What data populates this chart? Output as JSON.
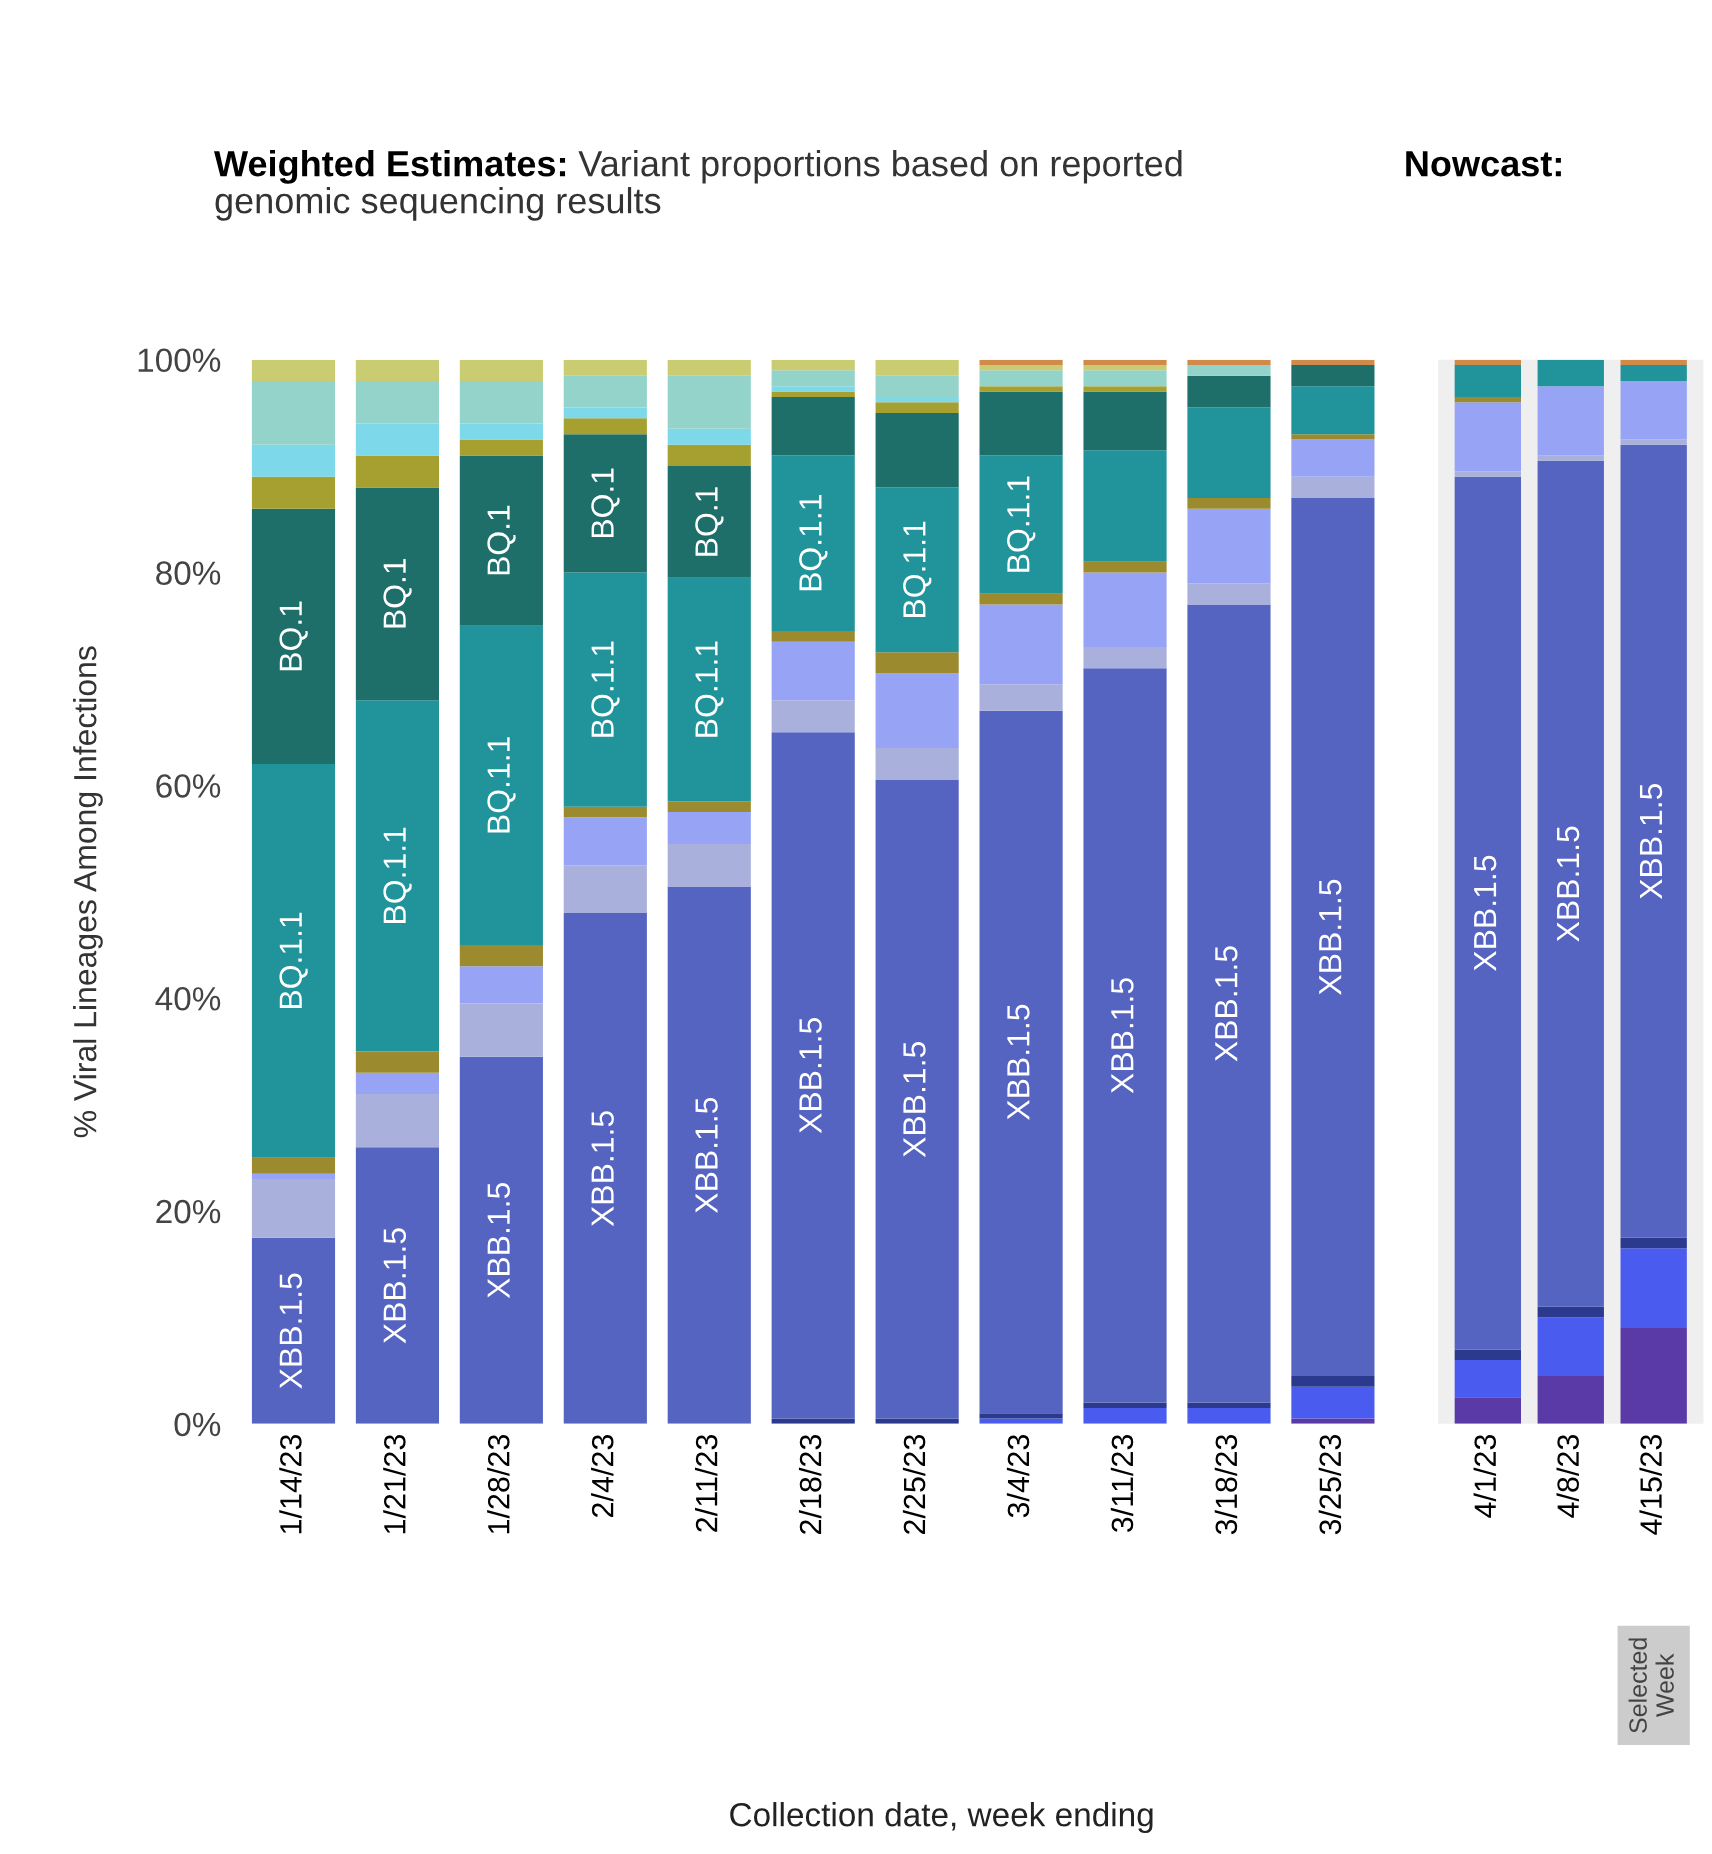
{
  "chart_data": [
    {
      "type": "bar",
      "stacked": true,
      "title": "Weighted Estimates:",
      "subtitle": "Variant proportions based on reported genomic sequencing results",
      "ylabel": "% Viral Lineages Among Infections",
      "xlabel": "Collection date, week ending",
      "categories": [
        "1/14/23",
        "1/21/23",
        "1/28/23",
        "2/4/23",
        "2/11/23",
        "2/18/23",
        "2/25/23",
        "3/4/23",
        "3/11/23",
        "3/18/23",
        "3/25/23"
      ],
      "ylim": [
        0,
        100
      ],
      "yticks": [
        {
          "value": 0,
          "label": "0%"
        },
        {
          "value": 20,
          "label": "20%"
        },
        {
          "value": 40,
          "label": "40%"
        },
        {
          "value": 60,
          "label": "60%"
        },
        {
          "value": 80,
          "label": "80%"
        },
        {
          "value": 100,
          "label": "100%"
        }
      ],
      "grid": false,
      "legend": false,
      "series": [
        {
          "color": "#5a3aa6",
          "values": [
            0,
            0,
            0,
            0,
            0,
            0,
            0,
            0,
            0,
            0,
            0.5
          ]
        },
        {
          "color": "#4a5cf0",
          "values": [
            0,
            0,
            0,
            0,
            0,
            0,
            0,
            0.5,
            1.5,
            1.5,
            3
          ]
        },
        {
          "color": "#2b3a8f",
          "values": [
            0,
            0,
            0,
            0,
            0,
            0.5,
            0.5,
            0.5,
            0.5,
            0.5,
            1
          ]
        },
        {
          "color": "#5563c1",
          "values": [
            17.5,
            26,
            34.5,
            48,
            50.5,
            64.5,
            60,
            66,
            69,
            75,
            82.5
          ],
          "value_labels": [
            "XBB.1.5",
            "XBB.1.5",
            "XBB.1.5",
            "XBB.1.5",
            "XBB.1.5",
            "XBB.1.5",
            "XBB.1.5",
            "XBB.1.5",
            "XBB.1.5",
            "XBB.1.5",
            "XBB.1.5"
          ]
        },
        {
          "color": "#a9b0dc",
          "values": [
            5.5,
            5,
            5,
            4.5,
            4,
            3,
            3,
            2.5,
            2,
            2,
            2
          ]
        },
        {
          "color": "#97a4f5",
          "values": [
            0.5,
            2,
            3.5,
            4.5,
            3,
            5.5,
            7,
            7.5,
            7,
            7,
            3.5
          ]
        },
        {
          "color": "#9c8a2e",
          "values": [
            1.5,
            2,
            2,
            1,
            1,
            1,
            2,
            1,
            1,
            1,
            0.5
          ]
        },
        {
          "color": "#21939a",
          "values": [
            37,
            33,
            30,
            22,
            21,
            16.5,
            15.5,
            13,
            10.5,
            8.5,
            4.5
          ],
          "value_labels": [
            "BQ.1.1",
            "BQ.1.1",
            "BQ.1.1",
            "BQ.1.1",
            "BQ.1.1",
            "BQ.1.1",
            "BQ.1.1",
            "BQ.1.1",
            null,
            null,
            null
          ]
        },
        {
          "color": "#1e6e6a",
          "values": [
            24,
            20,
            16,
            13,
            10.5,
            5.5,
            7,
            6,
            5.5,
            3,
            2
          ],
          "value_labels": [
            "BQ.1",
            "BQ.1",
            "BQ.1",
            "BQ.1",
            "BQ.1",
            null,
            null,
            null,
            null,
            null,
            null
          ]
        },
        {
          "color": "#a6a030",
          "values": [
            3,
            3,
            1.5,
            1.5,
            2,
            0.5,
            1,
            0.5,
            0.5,
            0,
            0
          ]
        },
        {
          "color": "#7dd8ea",
          "values": [
            3,
            3,
            1.5,
            1,
            1.5,
            0.5,
            0.5,
            0,
            0,
            0,
            0
          ]
        },
        {
          "color": "#94d3c9",
          "values": [
            6,
            4,
            4,
            3,
            5,
            1.5,
            2,
            1.5,
            1.5,
            1,
            0
          ]
        },
        {
          "color": "#c9cc70",
          "values": [
            2,
            2,
            2,
            1.5,
            1.5,
            1,
            1.5,
            0.5,
            0.5,
            0,
            0
          ]
        },
        {
          "color": "#d08a4a",
          "values": [
            0,
            0,
            0,
            0,
            0,
            0,
            0,
            0.5,
            0.5,
            0.5,
            0.5
          ]
        }
      ]
    },
    {
      "type": "bar",
      "stacked": true,
      "title": "Nowcast:",
      "categories": [
        "4/1/23",
        "4/8/23",
        "4/15/23"
      ],
      "ylim": [
        0,
        100
      ],
      "tick_labels": "x",
      "grid": false,
      "legend": false,
      "annotations": [
        "Selected Week"
      ],
      "series": [
        {
          "color": "#5a3aa6",
          "values": [
            2.5,
            4.5,
            9
          ]
        },
        {
          "color": "#4a5cf0",
          "values": [
            3.5,
            5.5,
            7.5
          ]
        },
        {
          "color": "#2b3a8f",
          "values": [
            1,
            1,
            1
          ]
        },
        {
          "color": "#5563c1",
          "values": [
            82,
            79.5,
            74.5
          ],
          "value_labels": [
            "XBB.1.5",
            "XBB.1.5",
            "XBB.1.5"
          ]
        },
        {
          "color": "#a9b0dc",
          "values": [
            0.5,
            0.5,
            0.5
          ]
        },
        {
          "color": "#97a4f5",
          "values": [
            6.5,
            6.5,
            5.5
          ]
        },
        {
          "color": "#9c8a2e",
          "values": [
            0.5,
            0,
            0
          ]
        },
        {
          "color": "#21939a",
          "values": [
            3,
            2.5,
            1.5
          ]
        },
        {
          "color": "#d08a4a",
          "values": [
            0.5,
            0,
            0.5
          ]
        }
      ]
    }
  ]
}
